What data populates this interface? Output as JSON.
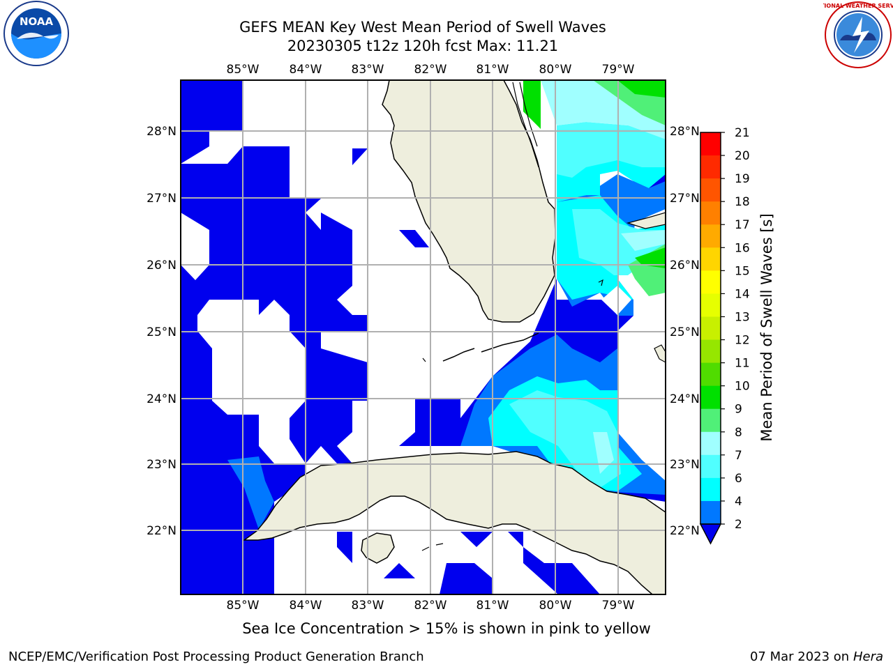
{
  "title": {
    "line1": "GEFS MEAN Key West Mean Period of Swell Waves",
    "line2": "20230305 t12z 120h fcst   Max: 11.21"
  },
  "map": {
    "lon_labels": [
      "85°W",
      "84°W",
      "83°W",
      "82°W",
      "81°W",
      "80°W",
      "79°W"
    ],
    "lat_labels": [
      "28°N",
      "27°N",
      "26°N",
      "25°N",
      "24°N",
      "23°N",
      "22°N"
    ],
    "colors": {
      "land": "#eeeedd",
      "grid": "#b0b0b0",
      "swell_low": "#0000ee"
    }
  },
  "colorbar": {
    "label": "Mean Period of Swell Waves [s]",
    "ticks": [
      "21",
      "20",
      "19",
      "18",
      "17",
      "16",
      "15",
      "14",
      "13",
      "12",
      "11",
      "10",
      "9",
      "8",
      "7",
      "6",
      "4",
      "2"
    ],
    "colors": [
      "#ff0000",
      "#ff2a00",
      "#ff5500",
      "#ff8000",
      "#ffaa00",
      "#ffd500",
      "#ffff00",
      "#e6ff00",
      "#c8f000",
      "#96e600",
      "#50dc00",
      "#00e000",
      "#50f078",
      "#a0ffff",
      "#50ffff",
      "#00ffff",
      "#0078ff",
      "#0000ee"
    ]
  },
  "footer": {
    "note": "Sea Ice Concentration > 15% is shown in pink to yellow",
    "credit_left": "NCEP/EMC/Verification Post Processing Product Generation Branch",
    "date": "07 Mar 2023 on",
    "host": "Hera"
  },
  "logos": {
    "noaa_text": "NOAA",
    "nws_text": "NATIONAL WEATHER SERVICE"
  }
}
